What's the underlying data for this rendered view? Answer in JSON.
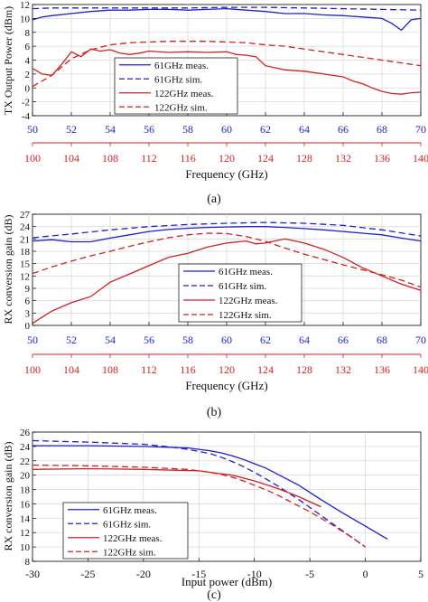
{
  "panels": [
    {
      "caption": "(a)",
      "xlabel": "Frequency (GHz)",
      "ylabel": "TX Output Power (dBm)"
    },
    {
      "caption": "(b)",
      "xlabel": "Frequency (GHz)",
      "ylabel": "RX conversion gain (dB)"
    },
    {
      "caption": "(c)",
      "xlabel": "Input power (dBm)",
      "ylabel": "RX conversion gain (dB)"
    }
  ],
  "colors": {
    "blue": "#1f1fd0",
    "red": "#d42020",
    "axis": "#000000",
    "grid": "#d9d9d9"
  },
  "chart_data": [
    {
      "type": "line",
      "xlabel": "Frequency (GHz)",
      "ylabel": "TX Output Power (dBm)",
      "xlim": [
        50,
        70
      ],
      "ylim": [
        -4,
        12
      ],
      "xticks": [
        50,
        52,
        54,
        56,
        58,
        60,
        62,
        64,
        66,
        68,
        70
      ],
      "x2ticks": [
        100,
        104,
        108,
        112,
        116,
        120,
        124,
        128,
        132,
        136,
        140
      ],
      "yticks": [
        -4,
        -2,
        0,
        2,
        4,
        6,
        8,
        10,
        12
      ],
      "grid": true,
      "legend": "center",
      "series": [
        {
          "name": "61GHz meas.",
          "color": "#1f1fd0",
          "dash": "solid",
          "x": [
            50,
            50.5,
            51,
            52,
            53,
            54,
            55,
            56,
            57,
            58,
            59,
            60,
            61,
            62,
            63,
            64,
            65,
            66,
            67,
            68,
            68.5,
            69,
            69.5,
            70
          ],
          "y": [
            9.8,
            10.2,
            10.4,
            10.7,
            11.0,
            11.2,
            11.2,
            11.3,
            11.3,
            11.2,
            11.3,
            11.4,
            11.2,
            11.0,
            10.7,
            10.7,
            10.5,
            10.4,
            10.2,
            10.0,
            9.3,
            8.3,
            9.8,
            10.0
          ]
        },
        {
          "name": "61GHz sim.",
          "color": "#1f1fd0",
          "dash": "dashed",
          "x": [
            50,
            51,
            52,
            53,
            54,
            56,
            58,
            60,
            62,
            64,
            66,
            68,
            70
          ],
          "y": [
            11.4,
            11.5,
            11.5,
            11.5,
            11.5,
            11.5,
            11.5,
            11.6,
            11.6,
            11.5,
            11.4,
            11.3,
            11.2
          ]
        },
        {
          "name": "122GHz meas.",
          "color": "#d42020",
          "dash": "solid",
          "x": [
            50,
            50.5,
            51,
            51.5,
            52,
            52.5,
            53,
            53.5,
            54,
            54.5,
            55,
            55.5,
            56,
            57,
            58,
            59,
            60,
            60.5,
            61,
            61.5,
            62,
            63,
            64,
            65,
            66,
            66.5,
            67,
            67.5,
            68,
            68.5,
            69,
            69.5,
            70
          ],
          "y": [
            2.8,
            2.0,
            1.8,
            3.4,
            5.2,
            4.5,
            5.6,
            5.3,
            5.5,
            5.0,
            4.8,
            5.0,
            5.3,
            5.1,
            5.2,
            5.1,
            5.2,
            4.8,
            4.7,
            4.5,
            3.2,
            2.6,
            2.4,
            2.0,
            1.6,
            1.0,
            0.6,
            0.0,
            -0.5,
            -0.8,
            -0.9,
            -0.7,
            -0.6
          ]
        },
        {
          "name": "122GHz sim.",
          "color": "#d42020",
          "dash": "dashed",
          "x": [
            50,
            51,
            52,
            53,
            54,
            55,
            56,
            57,
            58,
            59,
            60,
            61,
            62,
            63,
            64,
            65,
            66,
            67,
            68,
            69,
            70
          ],
          "y": [
            0.2,
            1.8,
            4.2,
            5.5,
            6.2,
            6.5,
            6.6,
            6.7,
            6.7,
            6.7,
            6.6,
            6.5,
            6.2,
            6.0,
            5.6,
            5.2,
            4.8,
            4.4,
            4.0,
            3.6,
            3.2
          ]
        }
      ]
    },
    {
      "type": "line",
      "xlabel": "Frequency (GHz)",
      "ylabel": "RX conversion gain (dB)",
      "xlim": [
        50,
        70
      ],
      "ylim": [
        0,
        27
      ],
      "xticks": [
        50,
        52,
        54,
        56,
        58,
        60,
        62,
        64,
        66,
        68,
        70
      ],
      "x2ticks": [
        100,
        104,
        108,
        112,
        116,
        120,
        124,
        128,
        132,
        136,
        140
      ],
      "yticks": [
        0,
        3,
        6,
        9,
        12,
        15,
        18,
        21,
        24,
        27
      ],
      "grid": true,
      "legend": "lower-right",
      "series": [
        {
          "name": "61GHz meas.",
          "color": "#1f1fd0",
          "dash": "solid",
          "x": [
            50,
            51,
            52,
            53,
            54,
            55,
            56,
            57,
            58,
            59,
            60,
            61,
            62,
            63,
            64,
            65,
            66,
            67,
            68,
            69,
            70
          ],
          "y": [
            20.5,
            20.8,
            20.3,
            20.3,
            21.2,
            22.0,
            22.8,
            23.3,
            23.6,
            23.8,
            23.9,
            24.0,
            24.0,
            23.8,
            23.5,
            23.2,
            22.8,
            22.4,
            22.0,
            21.2,
            20.5
          ]
        },
        {
          "name": "61GHz sim.",
          "color": "#1f1fd0",
          "dash": "dashed",
          "x": [
            50,
            52,
            54,
            56,
            58,
            60,
            62,
            64,
            66,
            68,
            70
          ],
          "y": [
            21.3,
            22.2,
            23.2,
            24.0,
            24.5,
            24.8,
            25.0,
            24.8,
            24.3,
            23.2,
            21.7
          ]
        },
        {
          "name": "122GHz meas.",
          "color": "#d42020",
          "dash": "solid",
          "x": [
            50,
            51,
            52,
            53,
            54,
            55,
            56,
            57,
            58,
            59,
            60,
            61,
            61.5,
            62,
            63,
            64,
            65,
            66,
            67,
            68,
            69,
            70
          ],
          "y": [
            0.5,
            3.5,
            5.5,
            7.0,
            10.5,
            12.5,
            14.5,
            16.5,
            17.5,
            19.0,
            20.0,
            20.5,
            19.8,
            20.0,
            21.0,
            20.0,
            18.5,
            16.5,
            14.0,
            12.0,
            10.0,
            8.5
          ]
        },
        {
          "name": "122GHz sim.",
          "color": "#d42020",
          "dash": "dashed",
          "x": [
            50,
            51,
            52,
            53,
            54,
            55,
            56,
            57,
            58,
            59,
            60,
            61,
            62,
            63,
            64,
            65,
            66,
            67,
            68,
            69,
            70
          ],
          "y": [
            12.6,
            14.2,
            15.6,
            16.9,
            18.0,
            19.2,
            20.3,
            21.3,
            22.0,
            22.4,
            22.3,
            21.6,
            20.4,
            18.8,
            17.3,
            16.0,
            14.7,
            13.5,
            12.3,
            11.0,
            9.3
          ]
        }
      ]
    },
    {
      "type": "line",
      "xlabel": "Input power (dBm)",
      "ylabel": "RX conversion gain (dB)",
      "xlim": [
        -30,
        5
      ],
      "ylim": [
        8,
        26
      ],
      "xticks": [
        -30,
        -25,
        -20,
        -15,
        -10,
        -5,
        0,
        5
      ],
      "yticks": [
        8,
        10,
        12,
        14,
        16,
        18,
        20,
        22,
        24,
        26
      ],
      "grid": true,
      "legend": "lower-left",
      "series": [
        {
          "name": "61GHz meas.",
          "color": "#1f1fd0",
          "dash": "solid",
          "x": [
            -30,
            -25,
            -20,
            -18,
            -16,
            -15,
            -14,
            -13,
            -12,
            -11,
            -10,
            -9,
            -8,
            -6,
            -4,
            -2,
            0,
            2
          ],
          "y": [
            24.1,
            24.1,
            24.0,
            23.9,
            23.8,
            23.6,
            23.4,
            23.1,
            22.7,
            22.2,
            21.6,
            21.0,
            20.2,
            18.6,
            16.6,
            14.7,
            12.9,
            11.1
          ]
        },
        {
          "name": "61GHz sim.",
          "color": "#1f1fd0",
          "dash": "dashed",
          "x": [
            -30,
            -25,
            -20,
            -18,
            -16,
            -14,
            -13,
            -12,
            -11,
            -10,
            -9,
            -8,
            -7,
            -6,
            -5,
            -4,
            -3,
            -2,
            -1,
            0
          ],
          "y": [
            24.8,
            24.6,
            24.3,
            24.0,
            23.6,
            23.0,
            22.5,
            21.9,
            21.2,
            20.4,
            19.5,
            18.6,
            17.6,
            16.6,
            15.5,
            14.4,
            13.3,
            12.2,
            11.1,
            10.0
          ]
        },
        {
          "name": "122GHz meas.",
          "color": "#d42020",
          "dash": "solid",
          "x": [
            -30,
            -25,
            -20,
            -15,
            -14,
            -13,
            -12,
            -11,
            -10,
            -9,
            -8,
            -7,
            -6,
            -5,
            -4
          ],
          "y": [
            20.8,
            20.9,
            20.8,
            20.6,
            20.4,
            20.2,
            20.0,
            19.6,
            19.2,
            18.7,
            18.2,
            17.6,
            17.0,
            16.3,
            15.6
          ]
        },
        {
          "name": "122GHz sim.",
          "color": "#d42020",
          "dash": "dashed",
          "x": [
            -30,
            -25,
            -20,
            -16,
            -14,
            -13,
            -12,
            -11,
            -10,
            -9,
            -8,
            -7,
            -6,
            -5,
            -4,
            -3,
            -2,
            -1,
            0
          ],
          "y": [
            21.4,
            21.3,
            21.1,
            20.8,
            20.4,
            20.1,
            19.7,
            19.2,
            18.6,
            18.0,
            17.3,
            16.5,
            15.7,
            14.9,
            14.0,
            13.1,
            12.1,
            11.1,
            10.0
          ]
        }
      ]
    }
  ]
}
